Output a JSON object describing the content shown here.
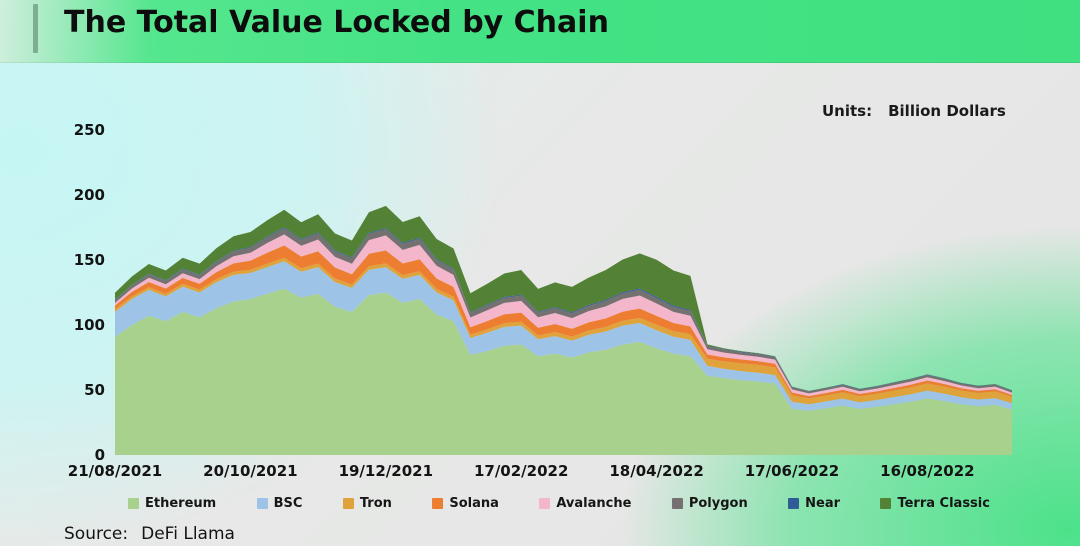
{
  "header": {
    "title": "The Total Value Locked by Chain"
  },
  "chart": {
    "units_label": "Units:",
    "units_value": "Billion Dollars"
  },
  "footer": {
    "source_label": "Source:",
    "source_value": "DeFi Llama"
  },
  "chart_data": {
    "type": "area",
    "stacked": true,
    "title": "The Total Value Locked by Chain",
    "units": "Billion Dollars",
    "xlabel": "",
    "ylabel": "",
    "ylim": [
      0,
      250
    ],
    "y_ticks": [
      0,
      50,
      100,
      150,
      200,
      250
    ],
    "grid": false,
    "legend_position": "bottom",
    "x_tick_labels": [
      "21/08/2021",
      "20/10/2021",
      "19/12/2021",
      "17/02/2022",
      "18/04/2022",
      "17/06/2022",
      "16/08/2022"
    ],
    "x_tick_indices": [
      0,
      8,
      16,
      24,
      32,
      40,
      48
    ],
    "n_points": 54,
    "series": [
      {
        "name": "Ethereum",
        "color": "#a9d18e",
        "values": [
          91,
          100,
          107,
          103,
          110,
          106,
          113,
          118,
          120,
          124,
          128,
          121,
          124,
          114,
          110,
          123,
          125,
          117,
          120,
          108,
          103,
          77,
          80,
          84,
          85,
          76,
          78,
          75,
          79,
          81,
          85,
          87,
          82,
          78,
          76,
          61,
          59,
          57.5,
          56.5,
          55,
          35.5,
          34,
          36,
          38,
          35.5,
          37,
          39,
          41,
          43.5,
          41.5,
          39,
          37.5,
          38.5,
          35
        ]
      },
      {
        "name": "BSC",
        "color": "#9dc3e6",
        "values": [
          19,
          20,
          20,
          19,
          19.5,
          19,
          20,
          20.5,
          20,
          20.5,
          21,
          20,
          20.5,
          19,
          18.5,
          19.5,
          19.5,
          18.5,
          18.5,
          17,
          16,
          13,
          14,
          14.5,
          14.5,
          13,
          13.5,
          13,
          13.5,
          14,
          14.5,
          14.5,
          14,
          13,
          12.5,
          7.5,
          7.2,
          7,
          6.8,
          6.5,
          5.5,
          5,
          5.2,
          5.4,
          5.1,
          5.3,
          5.5,
          5.7,
          6,
          5.7,
          5.4,
          5.2,
          5.3,
          4.9
        ]
      },
      {
        "name": "Tron",
        "color": "#e0a33b",
        "values": [
          2,
          2,
          2.1,
          2.1,
          2.2,
          2.2,
          2.3,
          2.4,
          2.5,
          2.6,
          2.7,
          2.7,
          2.8,
          2.7,
          2.6,
          2.8,
          2.9,
          2.8,
          2.9,
          2.8,
          2.8,
          2.5,
          2.7,
          2.9,
          3,
          2.9,
          3,
          3.1,
          3.3,
          3.5,
          3.8,
          4,
          4.2,
          4.3,
          4.4,
          5.5,
          5.8,
          6,
          6,
          5.9,
          5,
          4.5,
          4.6,
          4.8,
          4.6,
          4.7,
          5,
          5.3,
          5.6,
          5.4,
          5.2,
          5,
          5.1,
          4.8
        ]
      },
      {
        "name": "Solana",
        "color": "#ed7d31",
        "values": [
          3,
          3.5,
          4,
          4,
          4.5,
          4.5,
          5.5,
          6.5,
          7,
          8.5,
          9.5,
          9,
          9.5,
          8.5,
          8,
          9.5,
          10,
          9,
          9.2,
          8,
          7.5,
          5.8,
          6.4,
          6.8,
          7,
          6,
          6.3,
          6,
          6.3,
          6.6,
          7,
          7.2,
          6.8,
          6.2,
          6,
          3.3,
          3.1,
          3,
          2.9,
          2.8,
          2.1,
          1.8,
          1.9,
          2,
          1.8,
          1.9,
          2,
          2.1,
          2.2,
          2,
          1.8,
          1.7,
          1.7,
          1.5
        ]
      },
      {
        "name": "Avalanche",
        "color": "#f3b6cb",
        "values": [
          2,
          2.6,
          3.2,
          3.2,
          3.6,
          3.6,
          4.5,
          5.5,
          6,
          7.5,
          8.5,
          8.2,
          9,
          8.2,
          8,
          10.5,
          11.5,
          10.5,
          11,
          9.8,
          9.2,
          7.5,
          8.3,
          8.8,
          9,
          8,
          8.4,
          8.2,
          8.7,
          9.2,
          9.8,
          10,
          9.5,
          8.6,
          8.2,
          4,
          3.7,
          3.5,
          3.4,
          3.2,
          2.4,
          2.1,
          2.2,
          2.3,
          2.1,
          2.2,
          2.3,
          2.4,
          2.5,
          2.3,
          2.1,
          2,
          2,
          1.8
        ]
      },
      {
        "name": "Polygon",
        "color": "#767171",
        "values": [
          2,
          2.4,
          2.8,
          2.8,
          3,
          3,
          3.4,
          3.8,
          4,
          4.4,
          4.8,
          4.6,
          4.8,
          4.4,
          4.3,
          4.8,
          5,
          4.7,
          4.8,
          4.4,
          4.2,
          3.5,
          3.8,
          4,
          4.1,
          3.7,
          3.9,
          3.8,
          4,
          4.2,
          4.4,
          4.5,
          4.3,
          4,
          3.9,
          2.3,
          2.2,
          2.1,
          2.1,
          2,
          1.7,
          1.5,
          1.6,
          1.6,
          1.5,
          1.6,
          1.7,
          1.7,
          1.8,
          1.7,
          1.6,
          1.6,
          1.6,
          1.5
        ]
      },
      {
        "name": "Near",
        "color": "#2f5b96",
        "values": [
          0.3,
          0.3,
          0.35,
          0.35,
          0.4,
          0.4,
          0.45,
          0.5,
          0.5,
          0.55,
          0.6,
          0.6,
          0.65,
          0.6,
          0.6,
          0.7,
          0.7,
          0.7,
          0.7,
          0.65,
          0.65,
          0.55,
          0.6,
          0.65,
          0.7,
          0.65,
          0.7,
          0.7,
          0.75,
          0.8,
          0.85,
          0.9,
          0.85,
          0.8,
          0.75,
          0.45,
          0.42,
          0.4,
          0.4,
          0.38,
          0.3,
          0.28,
          0.28,
          0.3,
          0.28,
          0.28,
          0.3,
          0.3,
          0.32,
          0.3,
          0.28,
          0.28,
          0.28,
          0.25
        ]
      },
      {
        "name": "Terra Classic",
        "color": "#538135",
        "values": [
          5.5,
          6.5,
          7.5,
          7.5,
          8.5,
          8.5,
          10,
          11,
          11.5,
          12.5,
          13.5,
          13,
          14,
          13,
          13,
          16,
          17,
          16,
          16.5,
          15.5,
          15.5,
          14.5,
          16,
          18,
          19,
          17.5,
          19,
          19.5,
          21,
          23,
          25,
          27,
          28.5,
          27,
          26,
          1,
          0.6,
          0.4,
          0.3,
          0.25,
          0.15,
          0.1,
          0.1,
          0.1,
          0.1,
          0.1,
          0.1,
          0.1,
          0.1,
          0.1,
          0.1,
          0.1,
          0.1,
          0.1
        ]
      }
    ]
  }
}
